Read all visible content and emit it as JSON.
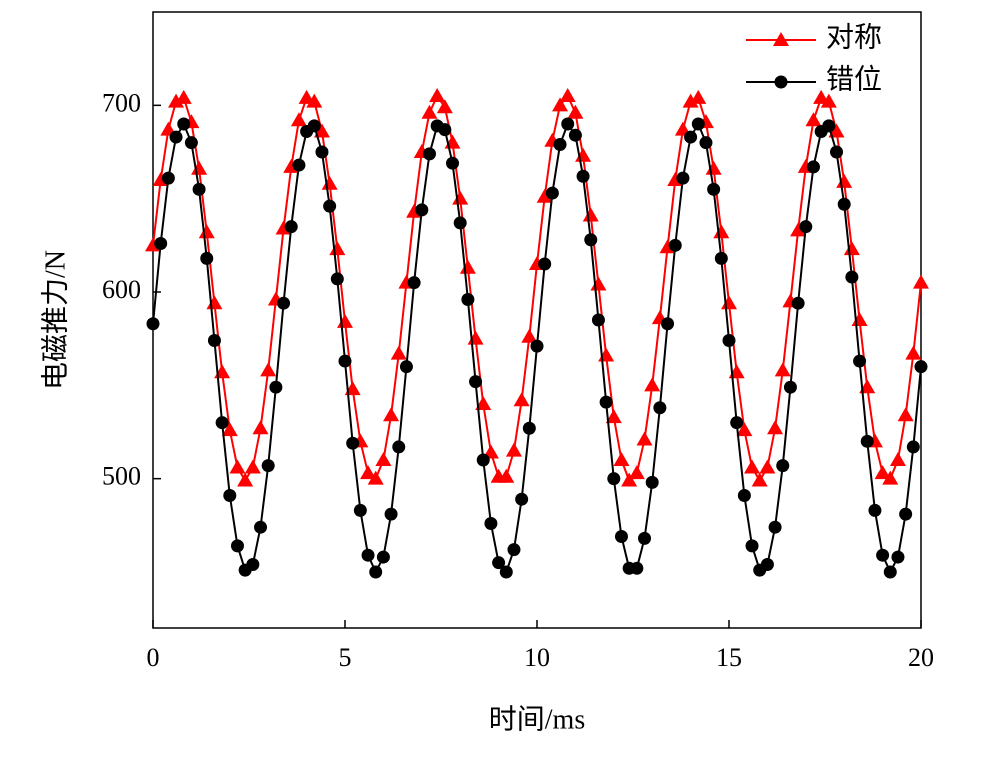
{
  "chart_data": {
    "type": "line",
    "x_label": "时间/ms",
    "y_label": "电磁推力/N",
    "x": [
      0,
      0.2,
      0.4,
      0.6,
      0.8,
      1,
      1.2,
      1.4,
      1.6,
      1.8,
      2,
      2.2,
      2.4,
      2.6,
      2.8,
      3,
      3.2,
      3.4,
      3.6,
      3.8,
      4,
      4.2,
      4.4,
      4.6,
      4.8,
      5,
      5.2,
      5.4,
      5.6,
      5.8,
      6,
      6.2,
      6.4,
      6.6,
      6.8,
      7,
      7.2,
      7.4,
      7.6,
      7.8,
      8,
      8.2,
      8.4,
      8.6,
      8.8,
      9,
      9.2,
      9.4,
      9.6,
      9.8,
      10,
      10.2,
      10.4,
      10.6,
      10.8,
      11,
      11.2,
      11.4,
      11.6,
      11.8,
      12,
      12.2,
      12.4,
      12.6,
      12.8,
      13,
      13.2,
      13.4,
      13.6,
      13.8,
      14,
      14.2,
      14.4,
      14.6,
      14.8,
      15,
      15.2,
      15.4,
      15.6,
      15.8,
      16,
      16.2,
      16.4,
      16.6,
      16.8,
      17,
      17.2,
      17.4,
      17.6,
      17.8,
      18,
      18.2,
      18.4,
      18.6,
      18.8,
      19,
      19.2,
      19.4,
      19.6,
      19.8,
      20
    ],
    "series": [
      {
        "name": "对称",
        "color": "#ff0000",
        "marker": "triangle",
        "values": [
          625,
          660,
          687,
          702,
          704,
          691,
          666,
          632,
          594,
          557,
          526,
          506,
          499,
          506,
          527,
          558,
          596,
          634,
          667,
          692,
          704,
          702,
          686,
          658,
          623,
          584,
          548,
          520,
          503,
          500,
          510,
          534,
          567,
          605,
          643,
          675,
          696,
          705,
          699,
          680,
          650,
          613,
          575,
          540,
          514,
          501,
          501,
          515,
          542,
          576,
          615,
          651,
          681,
          700,
          705,
          696,
          673,
          641,
          604,
          566,
          533,
          510,
          499,
          503,
          521,
          550,
          586,
          624,
          660,
          687,
          702,
          704,
          691,
          666,
          632,
          594,
          557,
          526,
          506,
          499,
          506,
          527,
          558,
          595,
          633,
          667,
          692,
          704,
          702,
          686,
          659,
          623,
          585,
          549,
          520,
          503,
          500,
          510,
          534,
          567,
          605
        ]
      },
      {
        "name": "错位",
        "color": "#000000",
        "marker": "circle",
        "values": [
          583,
          626,
          661,
          683,
          690,
          680,
          655,
          618,
          574,
          530,
          491,
          464,
          451,
          454,
          474,
          507,
          549,
          594,
          635,
          668,
          686,
          689,
          675,
          646,
          607,
          563,
          519,
          483,
          459,
          450,
          458,
          481,
          517,
          560,
          605,
          644,
          674,
          689,
          687,
          669,
          637,
          596,
          552,
          510,
          476,
          455,
          450,
          462,
          489,
          527,
          571,
          615,
          653,
          679,
          690,
          684,
          662,
          628,
          585,
          541,
          500,
          469,
          452,
          452,
          468,
          498,
          538,
          583,
          625,
          661,
          683,
          690,
          680,
          655,
          618,
          574,
          530,
          491,
          464,
          451,
          454,
          474,
          507,
          549,
          594,
          635,
          667,
          686,
          689,
          675,
          647,
          608,
          563,
          520,
          483,
          459,
          450,
          458,
          481,
          517,
          560
        ]
      }
    ],
    "xlim": [
      0,
      20
    ],
    "xticks": [
      0,
      5,
      10,
      15,
      20
    ],
    "ylim": [
      420,
      750
    ],
    "yticks": [
      500,
      600,
      700
    ],
    "legend": "upper right",
    "grid": false
  }
}
